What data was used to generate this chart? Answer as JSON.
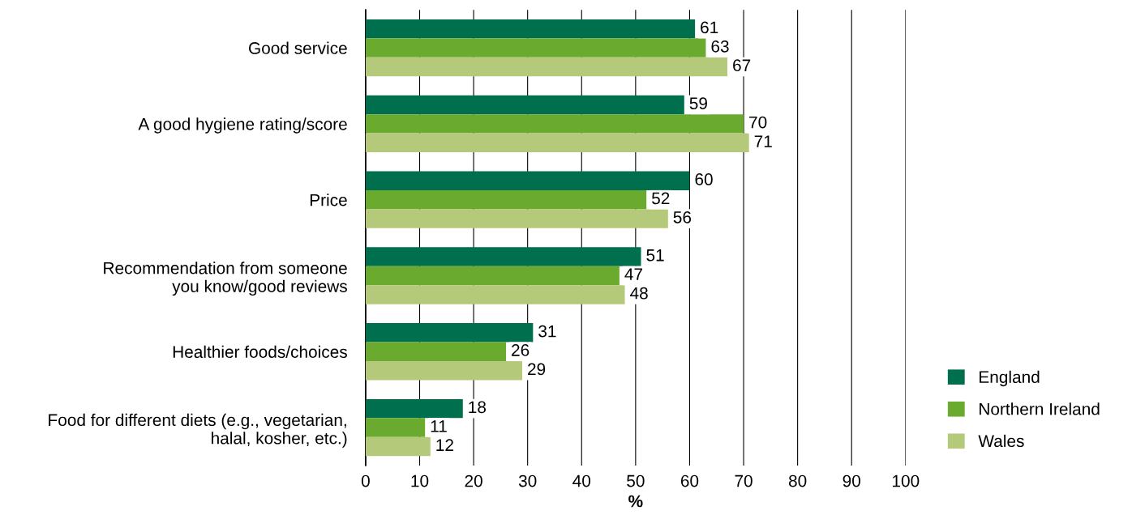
{
  "chart_data": {
    "type": "bar",
    "orientation": "horizontal",
    "xlabel": "%",
    "categories": [
      "Good service",
      "A good hygiene rating/score",
      "Price",
      "Recommendation from someone\nyou know/good reviews",
      "Healthier foods/choices",
      "Food for different diets (e.g., vegetarian,\nhalal, kosher, etc.)"
    ],
    "series": [
      {
        "name": "England",
        "color": "#006f4e",
        "values": [
          61,
          59,
          60,
          51,
          31,
          18
        ]
      },
      {
        "name": "Northern Ireland",
        "color": "#6aaa2e",
        "values": [
          63,
          70,
          52,
          47,
          26,
          11
        ]
      },
      {
        "name": "Wales",
        "color": "#b5c97a",
        "values": [
          67,
          71,
          56,
          48,
          29,
          12
        ]
      }
    ],
    "xlim": [
      0,
      100
    ],
    "xticks": [
      0,
      10,
      20,
      30,
      40,
      50,
      60,
      70,
      80,
      90,
      100
    ],
    "grid": "x",
    "legend": "bottom right",
    "data_labels": true
  }
}
